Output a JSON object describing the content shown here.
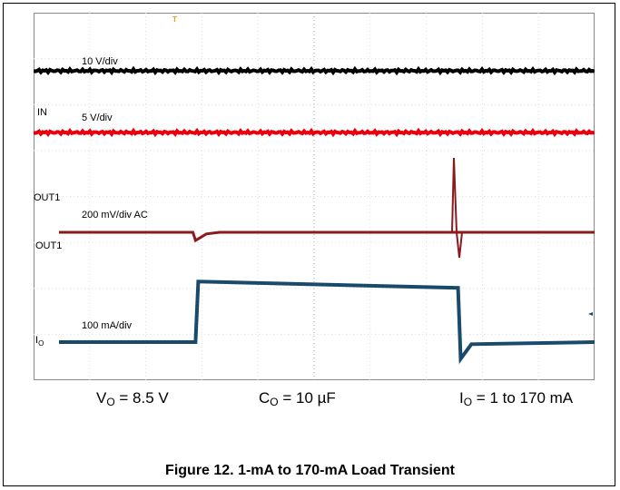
{
  "chart_data": {
    "type": "line",
    "title": "",
    "xlabel": "",
    "ylabel": "",
    "grid": true,
    "grid_divisions": {
      "x": 10,
      "y": 8
    },
    "trigger_marker": "T",
    "channels": [
      {
        "name": "",
        "scale_label": "10 V/div",
        "color": "#000000",
        "label": ""
      },
      {
        "name": "IN",
        "scale_label": "5 V/div",
        "color": "#e8000d",
        "label": "IN"
      },
      {
        "name": "OUT1",
        "scale_label": "200 mV/div AC",
        "color": "#8b1a1f",
        "label": "OUT1"
      },
      {
        "name": "IO",
        "scale_label": "100 mA/div",
        "color": "#1a4a6b",
        "label_main": "I",
        "label_sub": "O"
      }
    ],
    "series": [
      {
        "name": "OUT1",
        "x": [
          0,
          2.5,
          2.55,
          2.75,
          3.0,
          10
        ],
        "values": [
          0,
          0,
          -0.15,
          -0.03,
          0,
          0
        ]
      },
      {
        "name": "IO",
        "x": [
          0,
          2.55,
          2.6,
          7.45,
          7.5,
          7.7,
          10
        ],
        "values": [
          0,
          0,
          1.45,
          1.3,
          -0.4,
          -0.05,
          0
        ]
      }
    ],
    "side_labels": [
      "OUT1"
    ]
  },
  "captions": {
    "vo": {
      "main": "V",
      "sub": "O",
      "rest": " = 8.5 V"
    },
    "co": {
      "main": "C",
      "sub": "O",
      "rest": " = 10 µF"
    },
    "io": {
      "main": "I",
      "sub": "O",
      "rest": " = 1 to 170 mA"
    }
  },
  "figure_title": "Figure 12. 1-mA to 170-mA Load Transient"
}
